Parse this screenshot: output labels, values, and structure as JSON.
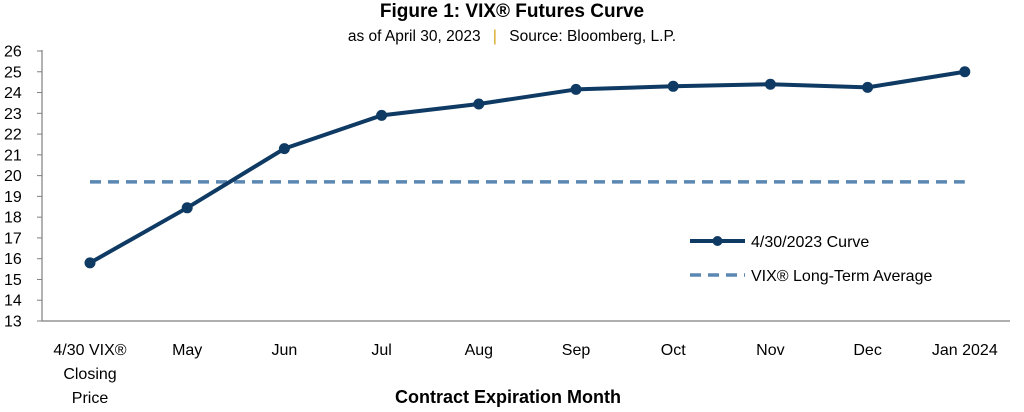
{
  "chart_data": {
    "type": "line",
    "title": "Figure 1: VIX® Futures Curve",
    "subtitle": {
      "date": "as of April 30, 2023",
      "separator": "|",
      "source": "Source: Bloomberg, L.P."
    },
    "xlabel": "Contract Expiration Month",
    "ylabel": "",
    "categories": [
      [
        "4/30 VIX®",
        "Closing",
        "Price"
      ],
      [
        "May"
      ],
      [
        "Jun"
      ],
      [
        "Jul"
      ],
      [
        "Aug"
      ],
      [
        "Sep"
      ],
      [
        "Oct"
      ],
      [
        "Nov"
      ],
      [
        "Dec"
      ],
      [
        "Jan 2024"
      ]
    ],
    "yticks": [
      "13",
      "14",
      "15",
      "16",
      "17",
      "18",
      "19",
      "20",
      "21",
      "22",
      "23",
      "24",
      "25",
      "26"
    ],
    "ylim": [
      13,
      26
    ],
    "grid": false,
    "legend_position": "bottom-right",
    "series": [
      {
        "name": "4/30/2023 Curve",
        "style": "solid-marker",
        "color": "#0f3a63",
        "values": [
          15.8,
          18.45,
          21.3,
          22.9,
          23.45,
          24.15,
          24.3,
          24.4,
          24.25,
          25.0
        ]
      },
      {
        "name": "VIX® Long-Term Average",
        "style": "dashed",
        "color": "#5b87b3",
        "values": [
          19.7,
          19.7,
          19.7,
          19.7,
          19.7,
          19.7,
          19.7,
          19.7,
          19.7,
          19.7
        ]
      }
    ],
    "colors": {
      "separator": "#d4a017",
      "axis": "#7f7f7f"
    }
  }
}
